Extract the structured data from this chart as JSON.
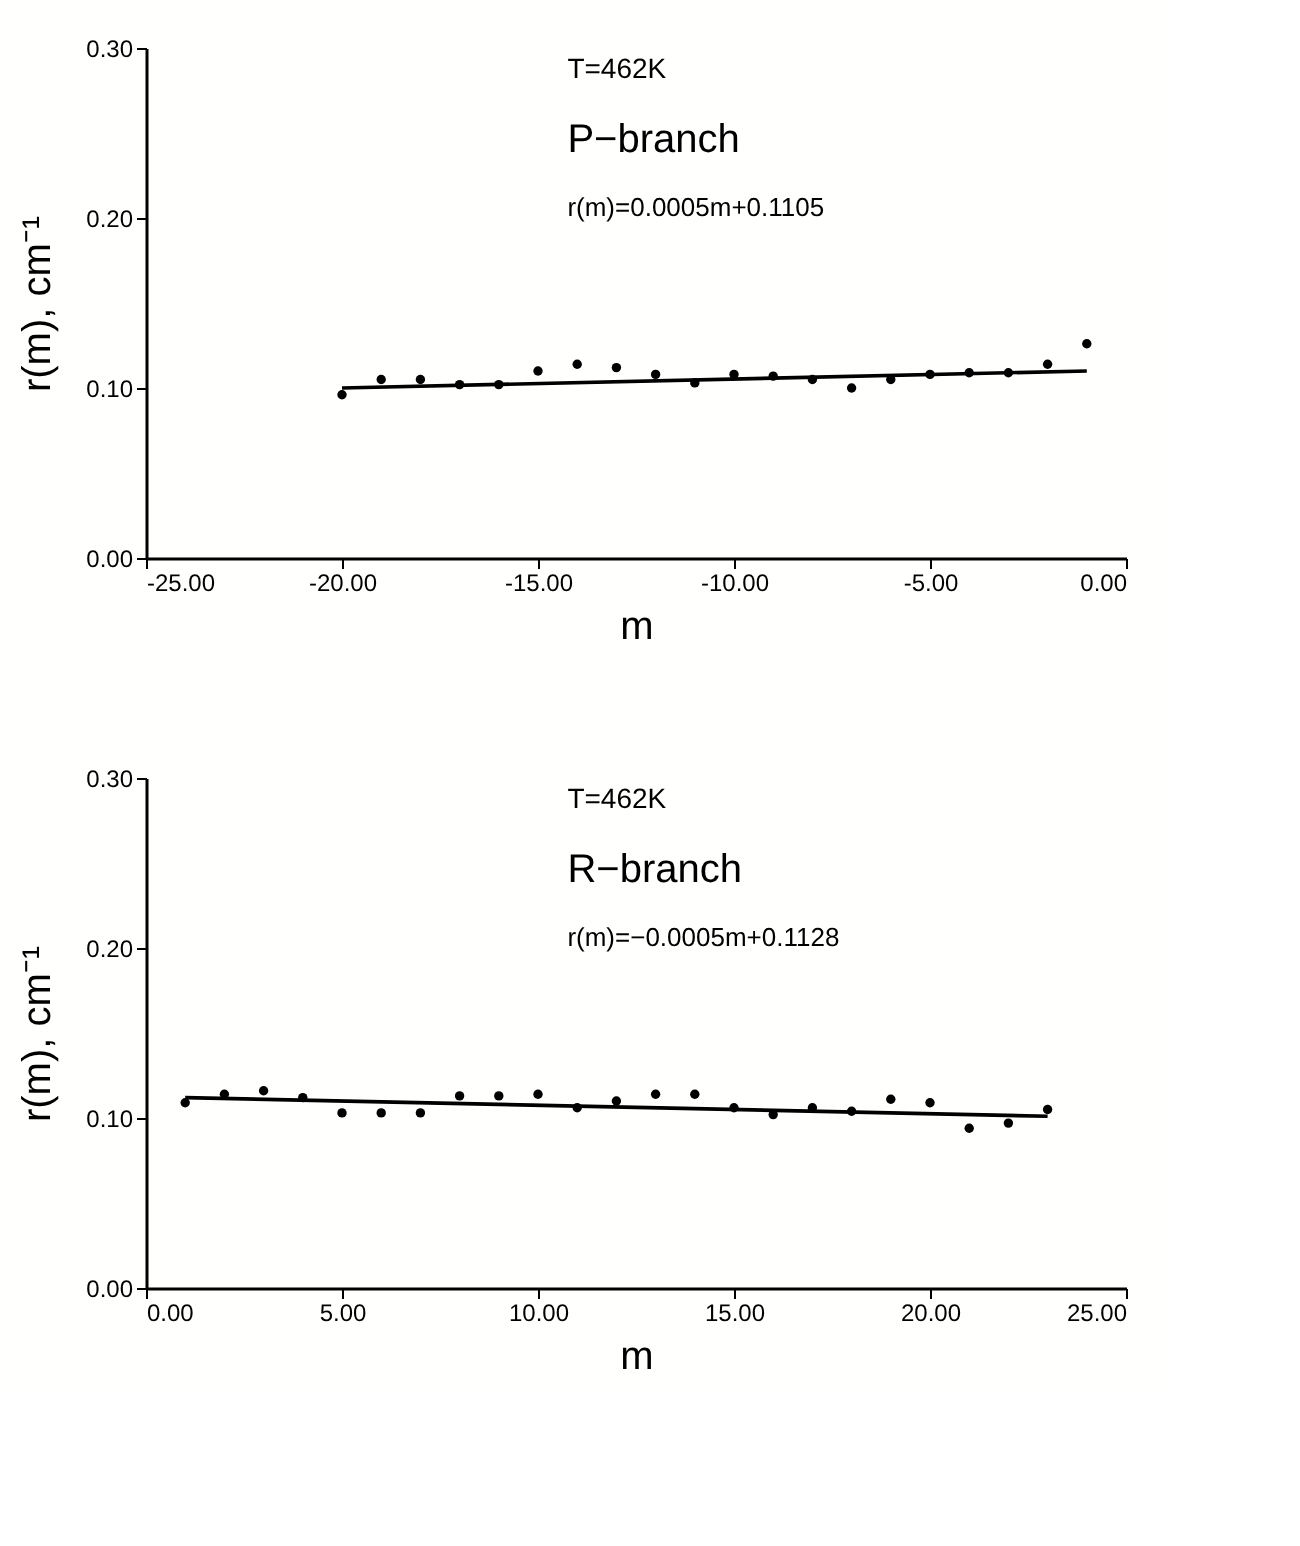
{
  "chart_data": [
    {
      "type": "scatter",
      "xlabel": "m",
      "ylabel": "r(m),   cm⁻¹",
      "annotations": [
        "T=462K",
        "P−branch",
        "r(m)=0.0005m+0.1105"
      ],
      "xlim": [
        -25,
        0
      ],
      "xticks": [
        {
          "value": -25,
          "label": "-25.00"
        },
        {
          "value": -20,
          "label": "-20.00"
        },
        {
          "value": -15,
          "label": "-15.00"
        },
        {
          "value": -10,
          "label": "-10.00"
        },
        {
          "value": -5,
          "label": "-5.00"
        },
        {
          "value": 0,
          "label": "0.00"
        }
      ],
      "ylim": [
        0,
        0.3
      ],
      "yticks": [
        {
          "value": 0,
          "label": "0.00"
        },
        {
          "value": 0.1,
          "label": "0.10"
        },
        {
          "value": 0.2,
          "label": "0.20"
        },
        {
          "value": 0.3,
          "label": "0.30"
        }
      ],
      "grid": false,
      "series": [
        {
          "marker": "circle",
          "color": "#000000",
          "x": [
            -20,
            -19,
            -18,
            -17,
            -16,
            -15,
            -14,
            -13,
            -12,
            -11,
            -10,
            -9,
            -8,
            -7,
            -6,
            -5,
            -4,
            -3,
            -2,
            -1
          ],
          "values": [
            0.096,
            0.105,
            0.105,
            0.102,
            0.102,
            0.11,
            0.114,
            0.112,
            0.108,
            0.103,
            0.108,
            0.107,
            0.105,
            0.1,
            0.105,
            0.108,
            0.109,
            0.109,
            0.114,
            0.126
          ]
        },
        {
          "type": "line",
          "color": "#000000",
          "x": [
            -20,
            -1
          ],
          "values": [
            0.1,
            0.11
          ]
        }
      ]
    },
    {
      "type": "scatter",
      "xlabel": "m",
      "ylabel": "r(m),   cm⁻¹",
      "annotations": [
        "T=462K",
        "R−branch",
        "r(m)=−0.0005m+0.1128"
      ],
      "xlim": [
        0,
        25
      ],
      "xticks": [
        {
          "value": 0,
          "label": "0.00"
        },
        {
          "value": 5,
          "label": "5.00"
        },
        {
          "value": 10,
          "label": "10.00"
        },
        {
          "value": 15,
          "label": "15.00"
        },
        {
          "value": 20,
          "label": "20.00"
        },
        {
          "value": 25,
          "label": "25.00"
        }
      ],
      "ylim": [
        0,
        0.3
      ],
      "yticks": [
        {
          "value": 0,
          "label": "0.00"
        },
        {
          "value": 0.1,
          "label": "0.10"
        },
        {
          "value": 0.2,
          "label": "0.20"
        },
        {
          "value": 0.3,
          "label": "0.30"
        }
      ],
      "grid": false,
      "series": [
        {
          "marker": "circle",
          "color": "#000000",
          "x": [
            1,
            2,
            3,
            4,
            5,
            6,
            7,
            8,
            9,
            10,
            11,
            12,
            13,
            14,
            15,
            16,
            17,
            18,
            19,
            20,
            21,
            22,
            23
          ],
          "values": [
            0.109,
            0.114,
            0.116,
            0.112,
            0.103,
            0.103,
            0.103,
            0.113,
            0.113,
            0.114,
            0.106,
            0.11,
            0.114,
            0.114,
            0.106,
            0.102,
            0.106,
            0.104,
            0.111,
            0.109,
            0.094,
            0.097,
            0.105
          ]
        },
        {
          "type": "line",
          "color": "#000000",
          "x": [
            1,
            23
          ],
          "values": [
            0.112,
            0.101
          ]
        }
      ]
    }
  ]
}
